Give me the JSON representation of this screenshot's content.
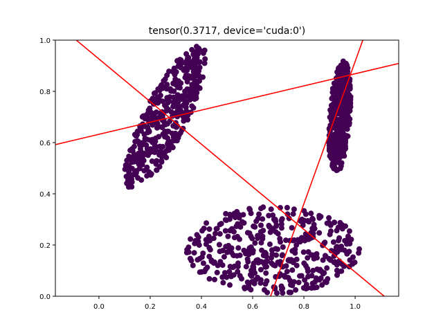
{
  "chart_data": {
    "type": "scatter",
    "title": "tensor(0.3717, device='cuda:0')",
    "xlabel": "",
    "ylabel": "",
    "xlim": [
      -0.17,
      1.17
    ],
    "ylim": [
      0.0,
      1.0
    ],
    "xticks": [
      0.0,
      0.2,
      0.4,
      0.6,
      0.8,
      1.0
    ],
    "xtick_labels": [
      "0.0",
      "0.2",
      "0.4",
      "0.6",
      "0.8",
      "1.0"
    ],
    "yticks": [
      0.0,
      0.2,
      0.4,
      0.6,
      0.8,
      1.0
    ],
    "ytick_labels": [
      "0.0",
      "0.2",
      "0.4",
      "0.6",
      "0.8",
      "1.0"
    ],
    "grid": false,
    "legend": "none",
    "point_color": "#440154",
    "line_color": "#ff0000",
    "clusters": [
      {
        "center": [
          0.26,
          0.7
        ],
        "angle_deg": 63,
        "semi_axis_major": 0.31,
        "semi_axis_minor": 0.085,
        "count": 420
      },
      {
        "center": [
          0.94,
          0.7
        ],
        "angle_deg": 86,
        "semi_axis_major": 0.22,
        "semi_axis_minor": 0.04,
        "count": 420
      },
      {
        "center": [
          0.68,
          0.18
        ],
        "angle_deg": 0,
        "semi_axis_major": 0.34,
        "semi_axis_minor": 0.17,
        "count": 420
      }
    ],
    "lines": [
      {
        "x": [
          -0.17,
          1.17
        ],
        "y": [
          1.068,
          -0.047
        ]
      },
      {
        "x": [
          -0.17,
          1.17
        ],
        "y": [
          0.592,
          0.909
        ]
      },
      {
        "x": [
          0.67,
          1.03
        ],
        "y": [
          0.0,
          1.0
        ]
      }
    ]
  }
}
